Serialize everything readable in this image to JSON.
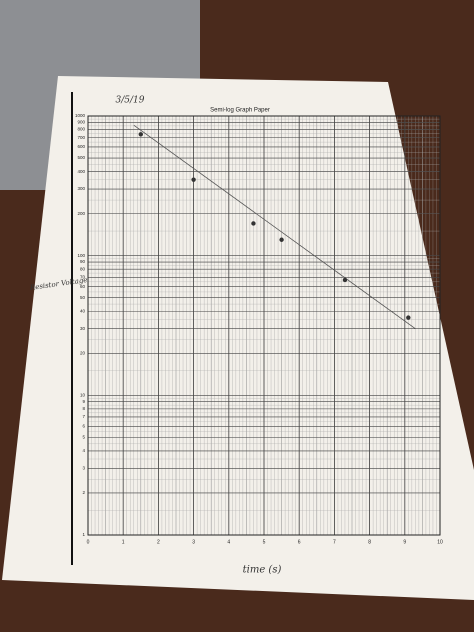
{
  "chart_data": {
    "type": "scatter",
    "title": "Semi-log Graph Paper",
    "date": "3/5/19",
    "x_label": "time (s)",
    "y_label": "Resistor Voltage",
    "x": [
      1.5,
      3,
      4.7,
      5.5,
      7.3,
      9.1
    ],
    "values": [
      740,
      350,
      170,
      130,
      67,
      36
    ],
    "color": "#333333",
    "trendline": {
      "x": [
        1.3,
        9.3
      ],
      "values": [
        860,
        30
      ],
      "color": "#555555"
    },
    "xlim": [
      0,
      10
    ],
    "xticks": [
      0,
      1,
      2,
      3,
      4,
      5,
      6,
      7,
      8,
      9,
      10
    ],
    "ylim": [
      1,
      1000
    ],
    "ylog": true,
    "yticks": [
      1,
      2,
      3,
      4,
      5,
      6,
      7,
      8,
      9,
      10,
      20,
      30,
      40,
      50,
      60,
      70,
      80,
      90,
      100,
      200,
      300,
      400,
      500,
      600,
      700,
      800,
      900,
      1000
    ],
    "grid": true
  }
}
